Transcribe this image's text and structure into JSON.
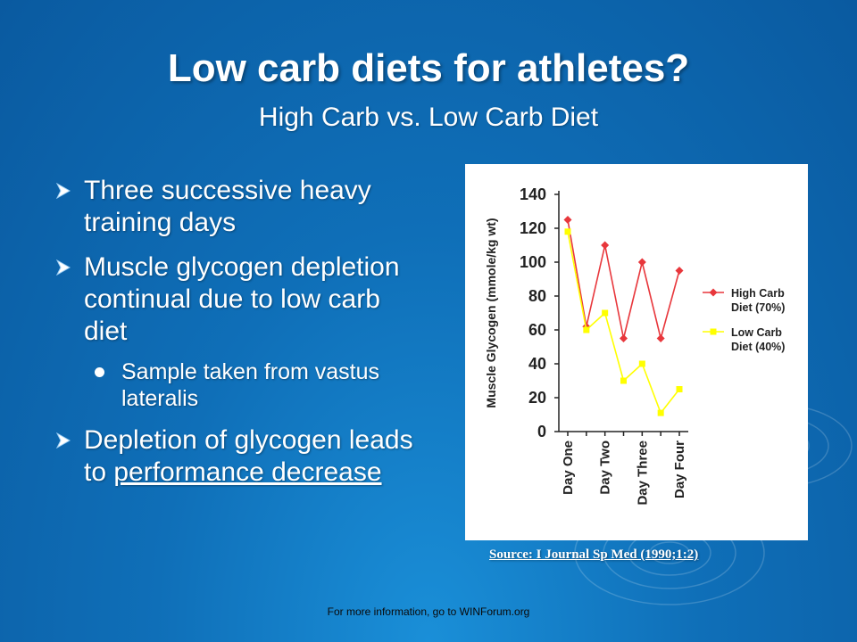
{
  "slide": {
    "title": "Low carb diets for athletes?",
    "subtitle": "High Carb vs. Low Carb Diet",
    "bullets": [
      {
        "text": "Three successive heavy training days"
      },
      {
        "text": "Muscle glycogen depletion continual due to low carb diet"
      },
      {
        "text": "Sample taken from vastus lateralis"
      },
      {
        "text_before": "Depletion of glycogen leads to ",
        "text_underlined": "performance decrease"
      }
    ],
    "source": "Source: I Journal Sp Med (1990;1:2)",
    "footer": "For more information, go to WINForum.org"
  },
  "colors": {
    "background": "#0f6fb8",
    "high_carb": "#e8373c",
    "low_carb": "#ffff00"
  },
  "chart_data": {
    "type": "line",
    "ylabel": "Muscle Glycogen (mmole/kg wt)",
    "xlabel": "",
    "ylim": [
      0,
      140
    ],
    "yticks": [
      0,
      20,
      40,
      60,
      80,
      100,
      120,
      140
    ],
    "categories": [
      "Day One",
      "Day Two",
      "Day Three",
      "Day Four"
    ],
    "x": [
      1,
      1.5,
      2,
      2.5,
      3,
      3.5,
      4
    ],
    "grid": false,
    "legend": "right",
    "series": [
      {
        "name": "High Carb Diet (70%)",
        "values": [
          125,
          62,
          110,
          55,
          100,
          55,
          95
        ]
      },
      {
        "name": "Low Carb Diet (40%)",
        "values": [
          118,
          60,
          70,
          30,
          40,
          11,
          25
        ]
      }
    ]
  }
}
